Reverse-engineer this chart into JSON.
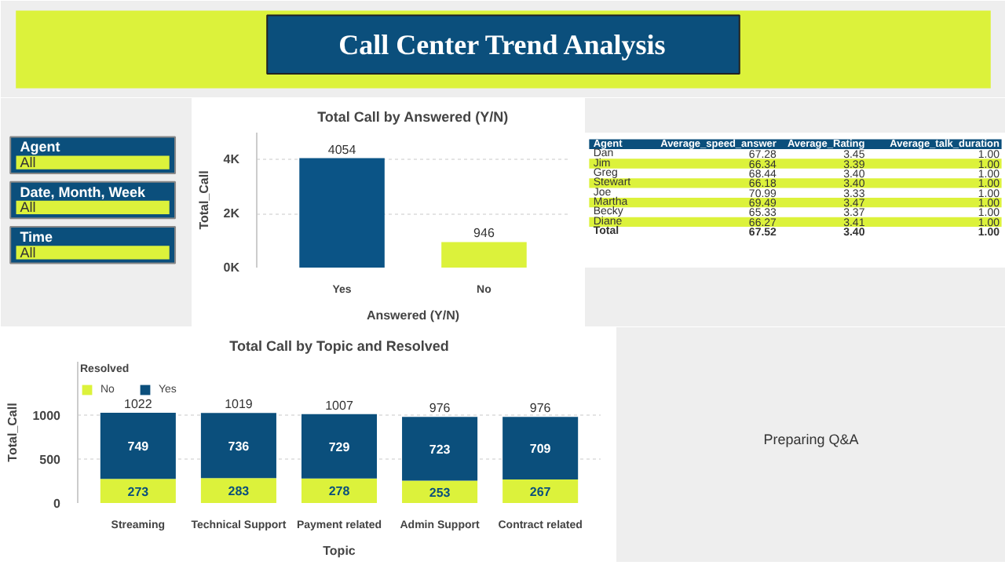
{
  "chart_data": [
    {
      "type": "other",
      "title": "Call Center Trend Analysis"
    },
    {
      "type": "other",
      "annotations": [
        "Agent",
        "All",
        "Date, Month, Week",
        "All",
        "Time",
        "All"
      ]
    },
    {
      "type": "bar",
      "title": "Total Call by Answered (Y/N)",
      "xlabel": "Answered (Y/N)",
      "ylabel": "Total_Call",
      "categories": [
        "Yes",
        "No"
      ],
      "values": [
        4054,
        946
      ],
      "colors": [
        "#0b5486",
        "#dcf23b"
      ],
      "ylim": [
        0,
        5000
      ],
      "yticks": [
        {
          "value": 0,
          "label": "0K"
        },
        {
          "value": 2000,
          "label": "2K"
        },
        {
          "value": 4000,
          "label": "4K"
        }
      ],
      "grid": "y",
      "data_labels": true
    },
    {
      "type": "other",
      "annotations": [
        "Agent",
        "Average_speed_answer",
        "Average_Rating",
        "Average_talk_duration",
        "Dan",
        "67.28",
        "3.45",
        "1.00",
        "Jim",
        "66.34",
        "3.39",
        "1.00",
        "Greg",
        "68.44",
        "3.40",
        "1.00",
        "Stewart",
        "66.18",
        "3.40",
        "1.00",
        "Joe",
        "70.99",
        "3.33",
        "1.00",
        "Martha",
        "69.49",
        "3.47",
        "1.00",
        "Becky",
        "65.33",
        "3.37",
        "1.00",
        "Diane",
        "66.27",
        "3.41",
        "1.00",
        "Total",
        "67.52",
        "3.40",
        "1.00"
      ]
    },
    {
      "type": "bar",
      "stacked": true,
      "title": "Total Call by Topic and Resolved",
      "xlabel": "Topic",
      "ylabel": "Total_Call",
      "legend_title": "Resolved",
      "legend": "top left",
      "categories": [
        "Streaming",
        "Technical Support",
        "Payment related",
        "Admin Support",
        "Contract related"
      ],
      "series": [
        {
          "name": "No",
          "color": "#dcf23b",
          "values": [
            273,
            283,
            278,
            253,
            267
          ]
        },
        {
          "name": "Yes",
          "color": "#0b4f7c",
          "values": [
            749,
            736,
            729,
            723,
            709
          ]
        }
      ],
      "totals": [
        "1022",
        "1019",
        "1007",
        "976",
        "976"
      ],
      "ylim": [
        0,
        1600
      ],
      "yticks": [
        0,
        500,
        1000
      ],
      "grid": "y",
      "data_labels": true
    },
    {
      "type": "other",
      "annotations": [
        "Preparing Q&A"
      ]
    }
  ]
}
